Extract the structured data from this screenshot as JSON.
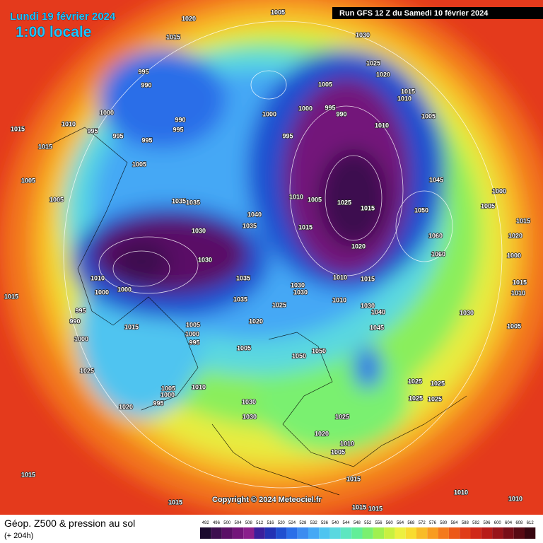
{
  "header": {
    "date": "Lundi 19 février 2024",
    "local_time": "1:00 locale",
    "run": "Run GFS 12 Z du Samedi 10 février 2024"
  },
  "copyright": "Copyright © 2024 Meteociel.fr",
  "legend": {
    "title": "Géop. Z500 & pression au sol",
    "lead": "(+ 204h)",
    "scale": {
      "values": [
        492,
        496,
        500,
        504,
        508,
        512,
        516,
        520,
        524,
        528,
        532,
        536,
        540,
        544,
        548,
        552,
        556,
        560,
        564,
        568,
        572,
        576,
        580,
        584,
        588,
        592,
        596,
        600,
        604,
        608,
        612
      ],
      "colors": [
        "#1a0a2e",
        "#3d0f4f",
        "#5a1066",
        "#73157a",
        "#8a1f8c",
        "#3a1f9c",
        "#2232b4",
        "#1f4fd0",
        "#2a6ee8",
        "#3c8cf0",
        "#45a8f5",
        "#4fc4f0",
        "#5ad8e0",
        "#5ee6c0",
        "#62ee98",
        "#7af070",
        "#a0f050",
        "#c8f040",
        "#ecf040",
        "#f8dc30",
        "#f8bc28",
        "#f89c20",
        "#f47a1c",
        "#ec5818",
        "#e03c18",
        "#d02818",
        "#b81c18",
        "#98141a",
        "#780e18",
        "#580a14",
        "#380610"
      ]
    }
  },
  "isobar_labels": [
    "1020",
    "1005",
    "1015",
    "1030",
    "1025",
    "1020",
    "995",
    "990",
    "1005",
    "1015",
    "1010",
    "1000",
    "990",
    "995",
    "1000",
    "1000",
    "995",
    "990",
    "1005",
    "1010",
    "1015",
    "1010",
    "995",
    "995",
    "995",
    "995",
    "1005",
    "1045",
    "1000",
    "1005",
    "1035",
    "1035",
    "1010",
    "1005",
    "1025",
    "1015",
    "1050",
    "1040",
    "1035",
    "1015",
    "1030",
    "1060",
    "1020",
    "1060",
    "1030",
    "1010",
    "1035",
    "1010",
    "1015",
    "1000",
    "1000",
    "1030",
    "1030",
    "1010",
    "1035",
    "1025",
    "1030",
    "1040",
    "1020",
    "1045",
    "1005",
    "1000",
    "995",
    "1015",
    "995",
    "990",
    "1000",
    "1005",
    "1050",
    "1050",
    "1025",
    "1025",
    "1025",
    "1010",
    "1005",
    "1000",
    "995",
    "1020",
    "1025",
    "1025",
    "1030",
    "1030",
    "1025",
    "1020",
    "1010",
    "1005",
    "1015",
    "1015",
    "1010",
    "1010",
    "1015",
    "1015",
    "1015",
    "1015",
    "1005",
    "1005",
    "1015",
    "1030",
    "1005",
    "1010",
    "1020",
    "1000",
    "1015",
    "1015"
  ]
}
